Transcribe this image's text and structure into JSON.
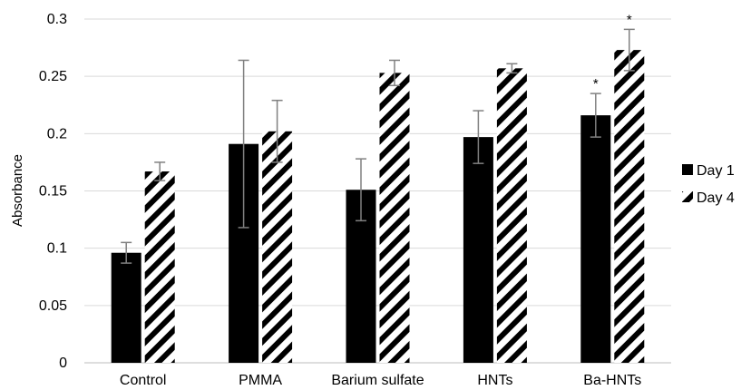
{
  "chart_data": {
    "type": "bar",
    "title": "",
    "xlabel": "",
    "ylabel": "Absorbance",
    "ylim": [
      0,
      0.3
    ],
    "yticks": [
      "0",
      "0.05",
      "0.1",
      "0.15",
      "0.2",
      "0.25",
      "0.3"
    ],
    "grid": true,
    "legend_position": "right",
    "categories": [
      "Control",
      "PMMA",
      "Barium sulfate",
      "HNTs",
      "Ba-HNTs"
    ],
    "series": [
      {
        "name": "Day 1",
        "fill": "solid",
        "color": "#000000",
        "values": [
          0.096,
          0.191,
          0.151,
          0.197,
          0.216
        ],
        "errors": [
          0.009,
          0.073,
          0.027,
          0.023,
          0.019
        ],
        "annotations": [
          "",
          "",
          "",
          "",
          "*"
        ]
      },
      {
        "name": "Day 4",
        "fill": "diagonal-hatch",
        "color": "#000000",
        "values": [
          0.167,
          0.202,
          0.253,
          0.257,
          0.273
        ],
        "errors": [
          0.008,
          0.027,
          0.011,
          0.004,
          0.018
        ],
        "annotations": [
          "",
          "",
          "",
          "",
          "*"
        ]
      }
    ]
  }
}
